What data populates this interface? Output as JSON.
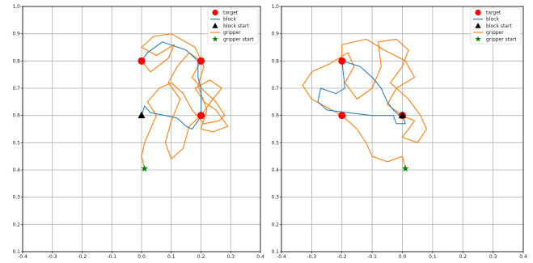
{
  "colors": {
    "target": "#ff0000",
    "block": "#1f77b4",
    "block_start": "#000000",
    "gripper": "#ff7f0e",
    "gripper_start": "#008000",
    "grid": "#b0b0b0"
  },
  "chart_data": [
    {
      "type": "line",
      "xlim": [
        -0.4,
        0.4
      ],
      "ylim": [
        0.1,
        1.0
      ],
      "xticks": [
        "-0.4",
        "-0.3",
        "-0.2",
        "-0.1",
        "0.0",
        "0.1",
        "0.2",
        "0.3",
        "0.4"
      ],
      "yticks": [
        "0.1",
        "0.2",
        "0.3",
        "0.4",
        "0.5",
        "0.6",
        "0.7",
        "0.8",
        "0.9",
        "1.0"
      ],
      "grid": true,
      "legend_position": "top-right",
      "legend": [
        "target",
        "block",
        "block start",
        "gripper",
        "gripper start"
      ],
      "targets": [
        [
          0.0,
          0.8
        ],
        [
          0.2,
          0.8
        ],
        [
          0.2,
          0.6
        ]
      ],
      "block_start": [
        0.0,
        0.6
      ],
      "gripper_start": [
        0.01,
        0.405
      ],
      "block_path": [
        [
          0.0,
          0.6
        ],
        [
          0.01,
          0.635
        ],
        [
          0.03,
          0.61
        ],
        [
          0.08,
          0.6
        ],
        [
          0.12,
          0.59
        ],
        [
          0.15,
          0.56
        ],
        [
          0.17,
          0.55
        ],
        [
          0.19,
          0.58
        ],
        [
          0.2,
          0.6
        ],
        [
          0.2,
          0.7
        ],
        [
          0.19,
          0.74
        ],
        [
          0.19,
          0.8
        ],
        [
          0.15,
          0.84
        ],
        [
          0.07,
          0.87
        ],
        [
          0.02,
          0.83
        ],
        [
          0.0,
          0.8
        ]
      ],
      "gripper_path": [
        [
          0.01,
          0.405
        ],
        [
          0.0,
          0.45
        ],
        [
          0.01,
          0.5
        ],
        [
          0.03,
          0.55
        ],
        [
          0.05,
          0.6
        ],
        [
          0.02,
          0.65
        ],
        [
          0.06,
          0.7
        ],
        [
          0.1,
          0.72
        ],
        [
          0.14,
          0.68
        ],
        [
          0.17,
          0.62
        ],
        [
          0.21,
          0.57
        ],
        [
          0.26,
          0.58
        ],
        [
          0.28,
          0.6
        ],
        [
          0.25,
          0.65
        ],
        [
          0.21,
          0.69
        ],
        [
          0.17,
          0.74
        ],
        [
          0.2,
          0.8
        ],
        [
          0.16,
          0.83
        ],
        [
          0.12,
          0.78
        ],
        [
          0.09,
          0.72
        ],
        [
          0.13,
          0.66
        ],
        [
          0.1,
          0.58
        ],
        [
          0.08,
          0.5
        ],
        [
          0.1,
          0.44
        ],
        [
          0.14,
          0.48
        ],
        [
          0.16,
          0.56
        ],
        [
          0.2,
          0.6
        ],
        [
          0.24,
          0.66
        ],
        [
          0.27,
          0.7
        ],
        [
          0.23,
          0.73
        ],
        [
          0.18,
          0.7
        ],
        [
          0.21,
          0.65
        ],
        [
          0.25,
          0.62
        ],
        [
          0.29,
          0.56
        ],
        [
          0.24,
          0.54
        ],
        [
          0.2,
          0.55
        ],
        [
          0.22,
          0.62
        ],
        [
          0.19,
          0.71
        ],
        [
          0.21,
          0.78
        ],
        [
          0.18,
          0.85
        ],
        [
          0.1,
          0.9
        ],
        [
          0.04,
          0.89
        ],
        [
          0.0,
          0.85
        ],
        [
          0.05,
          0.82
        ],
        [
          0.11,
          0.86
        ],
        [
          0.09,
          0.81
        ],
        [
          0.03,
          0.76
        ],
        [
          0.0,
          0.8
        ]
      ]
    },
    {
      "type": "line",
      "xlim": [
        -0.4,
        0.4
      ],
      "ylim": [
        0.1,
        1.0
      ],
      "xticks": [
        "-0.4",
        "-0.3",
        "-0.2",
        "-0.1",
        "0.0",
        "0.1",
        "0.2",
        "0.3",
        "0.4"
      ],
      "yticks": [
        "0.1",
        "0.2",
        "0.3",
        "0.4",
        "0.5",
        "0.6",
        "0.7",
        "0.8",
        "0.9",
        "1.0"
      ],
      "grid": true,
      "legend_position": "top-right",
      "legend": [
        "target",
        "block",
        "block start",
        "gripper",
        "gripper start"
      ],
      "targets": [
        [
          -0.2,
          0.8
        ],
        [
          -0.2,
          0.6
        ],
        [
          0.0,
          0.6
        ]
      ],
      "block_start": [
        0.0,
        0.6
      ],
      "gripper_start": [
        0.01,
        0.405
      ],
      "block_path": [
        [
          0.0,
          0.6
        ],
        [
          0.01,
          0.57
        ],
        [
          -0.02,
          0.57
        ],
        [
          -0.03,
          0.6
        ],
        [
          -0.1,
          0.6
        ],
        [
          -0.18,
          0.61
        ],
        [
          -0.25,
          0.62
        ],
        [
          -0.28,
          0.65
        ],
        [
          -0.27,
          0.7
        ],
        [
          -0.22,
          0.68
        ],
        [
          -0.19,
          0.7
        ],
        [
          -0.2,
          0.8
        ],
        [
          -0.14,
          0.78
        ],
        [
          -0.1,
          0.74
        ],
        [
          -0.07,
          0.7
        ],
        [
          -0.05,
          0.65
        ],
        [
          -0.03,
          0.62
        ],
        [
          -0.01,
          0.6
        ],
        [
          0.0,
          0.6
        ]
      ],
      "gripper_path": [
        [
          0.01,
          0.405
        ],
        [
          0.0,
          0.45
        ],
        [
          -0.05,
          0.43
        ],
        [
          -0.1,
          0.45
        ],
        [
          -0.12,
          0.5
        ],
        [
          -0.15,
          0.55
        ],
        [
          -0.2,
          0.6
        ],
        [
          -0.25,
          0.63
        ],
        [
          -0.3,
          0.66
        ],
        [
          -0.33,
          0.71
        ],
        [
          -0.3,
          0.76
        ],
        [
          -0.24,
          0.79
        ],
        [
          -0.18,
          0.83
        ],
        [
          -0.16,
          0.78
        ],
        [
          -0.19,
          0.72
        ],
        [
          -0.15,
          0.66
        ],
        [
          -0.1,
          0.7
        ],
        [
          -0.07,
          0.78
        ],
        [
          -0.08,
          0.87
        ],
        [
          -0.02,
          0.88
        ],
        [
          0.02,
          0.84
        ],
        [
          0.0,
          0.78
        ],
        [
          -0.04,
          0.72
        ],
        [
          0.02,
          0.66
        ],
        [
          0.06,
          0.6
        ],
        [
          0.08,
          0.55
        ],
        [
          0.05,
          0.5
        ],
        [
          0.0,
          0.52
        ],
        [
          0.04,
          0.58
        ],
        [
          0.0,
          0.6
        ],
        [
          -0.05,
          0.64
        ],
        [
          -0.02,
          0.7
        ],
        [
          0.04,
          0.74
        ],
        [
          0.01,
          0.8
        ],
        [
          -0.06,
          0.84
        ],
        [
          -0.12,
          0.88
        ],
        [
          -0.2,
          0.86
        ],
        [
          -0.2,
          0.8
        ]
      ]
    }
  ]
}
